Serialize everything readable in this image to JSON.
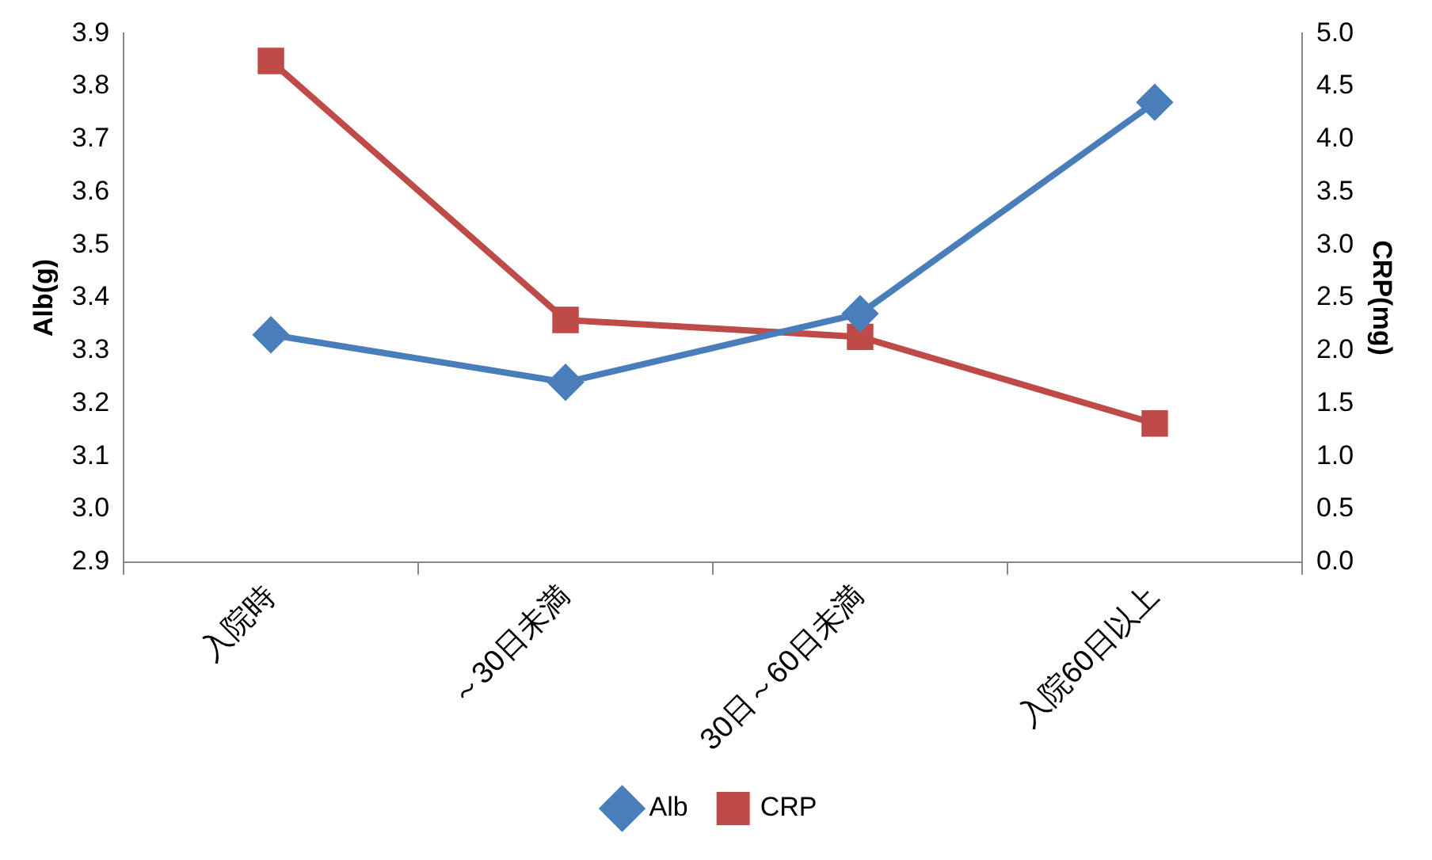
{
  "chart_data": {
    "type": "line",
    "categories": [
      "入院時",
      "～30日未満",
      "30日～60日未満",
      "入院60日以上"
    ],
    "series": [
      {
        "name": "Alb",
        "color": "#4a7ebb",
        "values": [
          3.33,
          3.24,
          3.37,
          3.77
        ],
        "marker": "diamond"
      },
      {
        "name": "CRP",
        "color": "#be4b48",
        "values": [
          4.74,
          2.29,
          2.13,
          1.31
        ],
        "axis": "y2",
        "marker": "square"
      }
    ],
    "ylabel": "Alb(g)",
    "y2label": "CRP(mg)",
    "ylim": [
      2.9,
      3.9
    ],
    "yticks": [
      2.9,
      {
        "value": 3,
        "label": "3.0"
      },
      3.1,
      3.2,
      3.3,
      3.4,
      3.5,
      3.6,
      3.7,
      3.8,
      3.9
    ],
    "y2lim": [
      0,
      5
    ],
    "y2ticks": [
      {
        "value": 0,
        "label": "0.0"
      },
      0.5,
      {
        "value": 1,
        "label": "1.0"
      },
      1.5,
      {
        "value": 2,
        "label": "2.0"
      },
      2.5,
      {
        "value": 3,
        "label": "3.0"
      },
      3.5,
      {
        "value": 4,
        "label": "4.0"
      },
      4.5,
      {
        "value": 5,
        "label": "5.0"
      }
    ],
    "grid": false,
    "legend": "bottom",
    "line_style": "solid"
  }
}
